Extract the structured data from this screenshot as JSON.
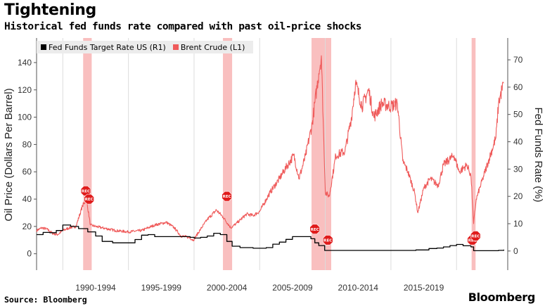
{
  "title": "Tightening",
  "subtitle": "Historical fed funds rate compared with past oil-price shocks",
  "source": "Source: Bloomberg",
  "brand": "Bloomberg",
  "colors": {
    "fed": "#000000",
    "brent": "#ef5b5b",
    "recession": "#f8b4b4",
    "rec_marker": "#e01b1b"
  },
  "chart_data": {
    "type": "line",
    "title": "Tightening",
    "subtitle": "Historical fed funds rate compared with past oil-price shocks",
    "ylabel_left": "Oil Price (Dollars Per Barrel)",
    "ylabel_right": "Fed Funds Rate (%)",
    "ylim_left": [
      -12,
      158
    ],
    "ylim_right": [
      -7,
      78
    ],
    "xlim": [
      1987.0,
      2022.9
    ],
    "left_ticks": [
      0,
      20,
      40,
      60,
      80,
      100,
      120,
      140
    ],
    "right_ticks": [
      0,
      10,
      20,
      30,
      40,
      50,
      60,
      70
    ],
    "x_tick_labels": [
      "1990-1994",
      "1995-1999",
      "2000-2004",
      "2005-2009",
      "2010-2014",
      "2015-2019"
    ],
    "legend": {
      "placement": "top-left",
      "entries": [
        "Fed Funds Target Rate US (R1)",
        "Brent Crude (L1)"
      ]
    },
    "recession_marker_label": "REC",
    "recessions": [
      {
        "start": 1990.55,
        "end": 1991.2
      },
      {
        "start": 2001.2,
        "end": 2001.9
      },
      {
        "start": 2007.95,
        "end": 2009.45
      },
      {
        "start": 2020.15,
        "end": 2020.45
      }
    ],
    "rec_markers": [
      {
        "x": 1990.75,
        "y": 22
      },
      {
        "x": 1991.0,
        "y": 19
      },
      {
        "x": 2001.5,
        "y": 20
      },
      {
        "x": 2008.2,
        "y": 8
      },
      {
        "x": 2009.2,
        "y": 4
      },
      {
        "x": 2020.2,
        "y": 4
      },
      {
        "x": 2020.45,
        "y": 5.5
      }
    ],
    "series": [
      {
        "name": "Brent Crude (L1)",
        "axis": "left",
        "x": [
          1987.0,
          1987.4,
          1987.8,
          1988.2,
          1988.6,
          1989.0,
          1989.5,
          1990.0,
          1990.5,
          1990.8,
          1991.1,
          1991.5,
          1992.0,
          1993.0,
          1994.0,
          1995.0,
          1996.0,
          1996.9,
          1997.5,
          1998.0,
          1998.6,
          1998.95,
          1999.5,
          2000.0,
          2000.7,
          2001.2,
          2001.8,
          2002.2,
          2003.0,
          2003.5,
          2004.0,
          2004.8,
          2005.5,
          2006.0,
          2006.6,
          2007.0,
          2007.5,
          2008.0,
          2008.5,
          2008.7,
          2009.0,
          2009.3,
          2009.8,
          2010.5,
          2011.0,
          2011.3,
          2011.8,
          2012.3,
          2012.7,
          2013.3,
          2014.0,
          2014.5,
          2014.9,
          2015.3,
          2015.8,
          2016.05,
          2016.5,
          2017.0,
          2017.6,
          2018.0,
          2018.8,
          2019.2,
          2019.8,
          2020.1,
          2020.3,
          2020.5,
          2021.0,
          2021.5,
          2022.0,
          2022.2,
          2022.45,
          2022.6
        ],
        "values": [
          17,
          19,
          18,
          15,
          14,
          17,
          19,
          20,
          35,
          40,
          21,
          20,
          19,
          17,
          16,
          17,
          21,
          23,
          19,
          13,
          12,
          10,
          18,
          25,
          32,
          27,
          19,
          22,
          29,
          28,
          31,
          45,
          55,
          63,
          72,
          55,
          72,
          95,
          132,
          145,
          45,
          42,
          72,
          75,
          100,
          125,
          108,
          120,
          100,
          110,
          108,
          110,
          68,
          60,
          45,
          30,
          48,
          55,
          50,
          65,
          72,
          60,
          65,
          57,
          22,
          40,
          55,
          70,
          85,
          110,
          120,
          125
        ]
      },
      {
        "name": "Fed Funds Target Rate US (R1)",
        "axis": "right",
        "x": [
          1987.0,
          1987.5,
          1988.0,
          1988.5,
          1989.0,
          1989.6,
          1990.2,
          1990.9,
          1991.5,
          1992.0,
          1992.8,
          1994.0,
          1994.5,
          1995.0,
          1995.5,
          1996.0,
          1998.7,
          1999.0,
          1999.5,
          2000.0,
          2000.5,
          2001.0,
          2001.5,
          2001.9,
          2002.5,
          2003.5,
          2004.5,
          2005.0,
          2005.5,
          2006.0,
          2006.5,
          2007.5,
          2007.9,
          2008.2,
          2008.5,
          2008.95,
          2015.9,
          2016.9,
          2017.5,
          2018.0,
          2018.5,
          2019.0,
          2019.5,
          2020.1,
          2020.3,
          2022.2,
          2022.6
        ],
        "values": [
          6.0,
          6.8,
          6.7,
          7.5,
          9.5,
          9.0,
          8.2,
          7.0,
          5.5,
          3.5,
          3.0,
          3.0,
          4.2,
          5.8,
          6.0,
          5.25,
          5.0,
          4.75,
          5.0,
          5.5,
          6.5,
          6.0,
          3.5,
          1.75,
          1.25,
          1.0,
          1.25,
          2.5,
          3.25,
          4.25,
          5.25,
          5.25,
          4.5,
          3.0,
          2.0,
          0.2,
          0.4,
          0.9,
          1.1,
          1.5,
          2.0,
          2.4,
          1.9,
          1.5,
          0.1,
          0.25,
          0.5
        ]
      }
    ]
  }
}
